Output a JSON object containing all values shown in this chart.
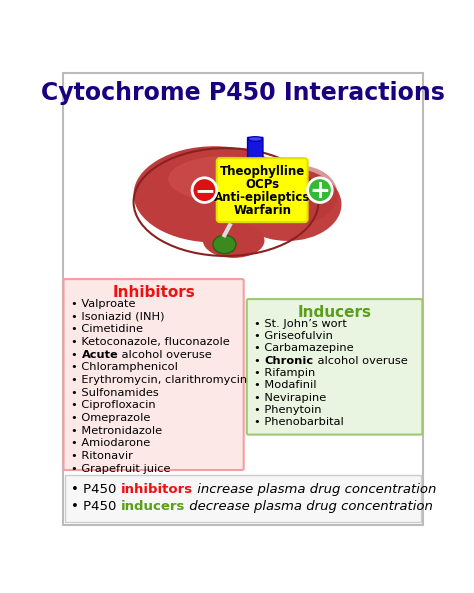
{
  "title": "Cytochrome P450 Interactions",
  "title_color": "#1a0080",
  "title_fontsize": 17,
  "bg_color": "#ffffff",
  "border_color": "#bbbbbb",
  "liver_drugs": [
    "Theophylline",
    "OCPs",
    "Anti-epileptics",
    "Warfarin"
  ],
  "inhibitors_title": "Inhibitors",
  "inhibitors_title_color": "#ee1111",
  "inhibitors_bg": "#fde8e8",
  "inhibitors_border": "#f4a0a0",
  "inhibitors": [
    {
      "text": "Valproate",
      "bold_word": null
    },
    {
      "text": "Isoniazid (INH)",
      "bold_word": null
    },
    {
      "text": "Cimetidine",
      "bold_word": null
    },
    {
      "text": "Ketoconazole, fluconazole",
      "bold_word": null
    },
    {
      "text": "Acute alcohol overuse",
      "bold_word": "Acute"
    },
    {
      "text": "Chloramphenicol",
      "bold_word": null
    },
    {
      "text": "Erythromycin, clarithromycin",
      "bold_word": null
    },
    {
      "text": "Sulfonamides",
      "bold_word": null
    },
    {
      "text": "Ciprofloxacin",
      "bold_word": null
    },
    {
      "text": "Omeprazole",
      "bold_word": null
    },
    {
      "text": "Metronidazole",
      "bold_word": null
    },
    {
      "text": "Amiodarone",
      "bold_word": null
    },
    {
      "text": "Ritonavir",
      "bold_word": null
    },
    {
      "text": "Grapefruit juice",
      "bold_word": null
    }
  ],
  "inducers_title": "Inducers",
  "inducers_title_color": "#5a9e1a",
  "inducers_bg": "#eaf5e1",
  "inducers_border": "#a0c870",
  "inducers": [
    {
      "text": "St. John’s wort",
      "bold_word": null
    },
    {
      "text": "Griseofulvin",
      "bold_word": null
    },
    {
      "text": "Carbamazepine",
      "bold_word": null
    },
    {
      "text": "Chronic alcohol overuse",
      "bold_word": "Chronic"
    },
    {
      "text": "Rifampin",
      "bold_word": null
    },
    {
      "text": "Modafinil",
      "bold_word": null
    },
    {
      "text": "Nevirapine",
      "bold_word": null
    },
    {
      "text": "Phenytoin",
      "bold_word": null
    },
    {
      "text": "Phenobarbital",
      "bold_word": null
    }
  ],
  "footer1_prefix": "• P450 ",
  "footer1_keyword": "inhibitors",
  "footer1_keyword_color": "#ee1111",
  "footer1_suffix": " increase plasma drug concentration",
  "footer2_prefix": "• P450 ",
  "footer2_keyword": "inducers",
  "footer2_keyword_color": "#5a9e1a",
  "footer2_suffix": " decrease plasma drug concentration",
  "footer_fontsize": 9.5
}
